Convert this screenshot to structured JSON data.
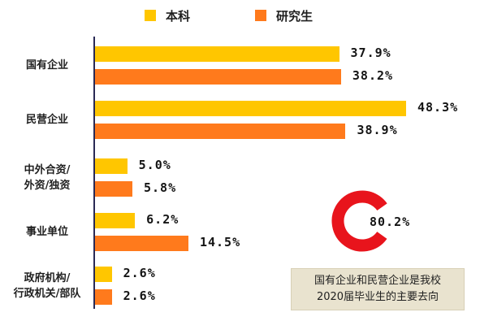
{
  "legend": {
    "items": [
      {
        "label": "本科",
        "color": "#ffc600"
      },
      {
        "label": "研究生",
        "color": "#ff7a1c"
      }
    ]
  },
  "chart_data": {
    "type": "bar",
    "orientation": "horizontal",
    "categories": [
      [
        "国有企业"
      ],
      [
        "民营企业"
      ],
      [
        "中外合资/",
        "外资/独资"
      ],
      [
        "事业单位"
      ],
      [
        "政府机构/",
        "行政机关/部队"
      ]
    ],
    "series": [
      {
        "name": "本科",
        "color": "#ffc600",
        "values": [
          37.9,
          48.3,
          5.0,
          6.2,
          2.6
        ],
        "labels": [
          "37.9%",
          "48.3%",
          "5.0%",
          "6.2%",
          "2.6%"
        ]
      },
      {
        "name": "研究生",
        "color": "#ff7a1c",
        "values": [
          38.2,
          38.9,
          5.8,
          14.5,
          2.6
        ],
        "labels": [
          "38.2%",
          "38.9%",
          "5.8%",
          "14.5%",
          "2.6%"
        ]
      }
    ],
    "xlim": [
      0,
      50
    ],
    "grid": false,
    "legend_position": "top"
  },
  "highlight": {
    "value": 80.2,
    "label": "80.2%",
    "color": "#e8141c",
    "track_color": "#ffffff"
  },
  "note": {
    "lines": [
      "国有企业和民营企业是我校",
      "2020届毕业生的主要去向"
    ]
  }
}
